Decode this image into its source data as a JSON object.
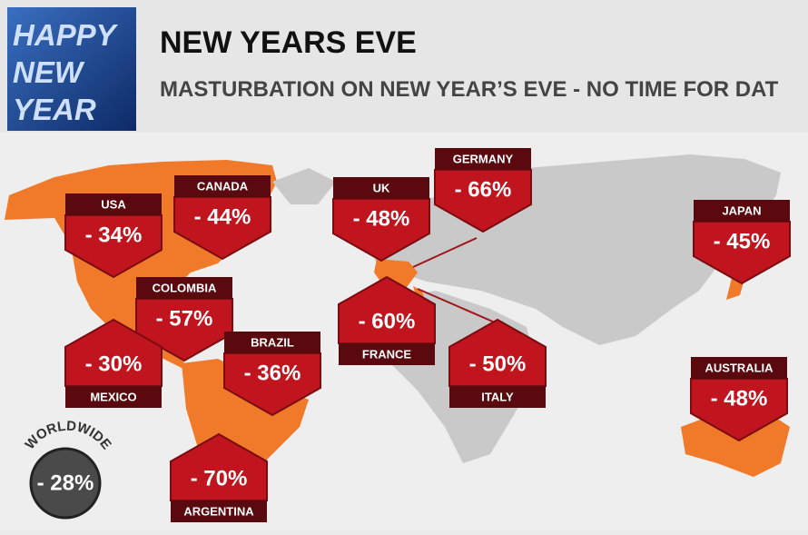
{
  "header": {
    "logo": [
      "HAPPY",
      "NEW",
      "YEAR"
    ],
    "title": "NEW YEARS EVE",
    "subtitle": "MASTURBATION ON NEW YEAR’S EVE - NO TIME FOR DAT"
  },
  "callouts": [
    {
      "country": "USA",
      "value": "- 34%"
    },
    {
      "country": "CANADA",
      "value": "- 44%"
    },
    {
      "country": "UK",
      "value": "- 48%"
    },
    {
      "country": "GERMANY",
      "value": "- 66%"
    },
    {
      "country": "JAPAN",
      "value": "- 45%"
    },
    {
      "country": "COLOMBIA",
      "value": "- 57%"
    },
    {
      "country": "BRAZIL",
      "value": "- 36%"
    },
    {
      "country": "AUSTRALIA",
      "value": "- 48%"
    },
    {
      "country": "MEXICO",
      "value": "- 30%"
    },
    {
      "country": "FRANCE",
      "value": "- 60%"
    },
    {
      "country": "ITALY",
      "value": "- 50%"
    },
    {
      "country": "ARGENTINA",
      "value": "- 70%"
    }
  ],
  "worldwide": {
    "label": "WORLDWIDE",
    "value": "- 28%"
  }
}
